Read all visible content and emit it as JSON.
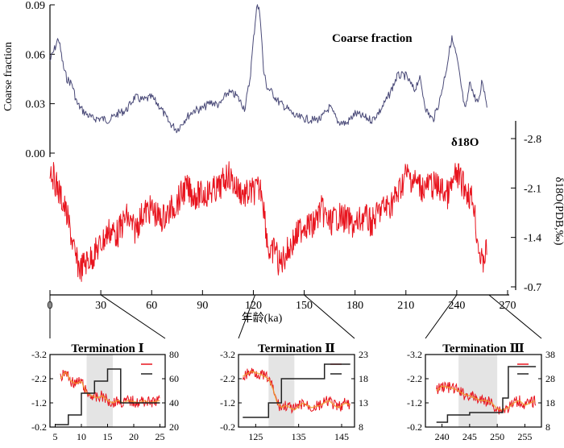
{
  "chart_data": [
    {
      "type": "line",
      "title": "",
      "xlabel": "年龄(ka)",
      "xlim": [
        0,
        270
      ],
      "x_ticks": [
        0,
        30,
        60,
        90,
        120,
        150,
        180,
        210,
        240,
        270
      ],
      "ylabel_left": "Coarse fraction",
      "ylim_left": [
        0.0,
        0.09
      ],
      "y_ticks_left": [
        "0.00",
        "0.03",
        "0.06",
        "0.09"
      ],
      "ylabel_right": "δ18O(PDB,‰)",
      "ylim_right": [
        -0.4,
        -3.2
      ],
      "y_ticks_right": [
        "-2.8",
        "-2.1",
        "-1.4",
        "-0.7"
      ],
      "grid": false,
      "series": [
        {
          "name": "Coarse fraction",
          "axis": "left",
          "color": "#4a4a78",
          "x": [
            0,
            3,
            5,
            8,
            10,
            13,
            16,
            20,
            25,
            30,
            35,
            40,
            45,
            50,
            55,
            60,
            65,
            70,
            75,
            80,
            85,
            90,
            95,
            100,
            105,
            110,
            115,
            118,
            120,
            122,
            124,
            126,
            128,
            130,
            135,
            140,
            145,
            150,
            155,
            160,
            165,
            170,
            175,
            180,
            185,
            190,
            195,
            200,
            205,
            210,
            215,
            218,
            222,
            226,
            230,
            234,
            237,
            240,
            243,
            245,
            248,
            250,
            253,
            255,
            258
          ],
          "values": [
            0.056,
            0.064,
            0.07,
            0.052,
            0.045,
            0.042,
            0.03,
            0.025,
            0.021,
            0.021,
            0.02,
            0.024,
            0.026,
            0.034,
            0.032,
            0.034,
            0.028,
            0.019,
            0.014,
            0.021,
            0.026,
            0.027,
            0.031,
            0.029,
            0.037,
            0.035,
            0.027,
            0.045,
            0.068,
            0.09,
            0.085,
            0.05,
            0.04,
            0.038,
            0.031,
            0.027,
            0.022,
            0.021,
            0.02,
            0.021,
            0.028,
            0.019,
            0.018,
            0.024,
            0.022,
            0.02,
            0.026,
            0.035,
            0.047,
            0.047,
            0.038,
            0.046,
            0.026,
            0.02,
            0.032,
            0.052,
            0.07,
            0.058,
            0.038,
            0.025,
            0.044,
            0.035,
            0.03,
            0.045,
            0.028
          ]
        },
        {
          "name": "δ18O",
          "axis": "right",
          "color": "#e8141e",
          "x": [
            0,
            3,
            6,
            9,
            12,
            15,
            18,
            21,
            24,
            27,
            30,
            35,
            40,
            45,
            50,
            55,
            60,
            65,
            70,
            75,
            80,
            85,
            90,
            95,
            100,
            105,
            110,
            115,
            120,
            125,
            128,
            130,
            133,
            135,
            140,
            145,
            150,
            155,
            160,
            165,
            170,
            175,
            180,
            185,
            190,
            195,
            200,
            205,
            210,
            215,
            220,
            225,
            230,
            235,
            240,
            245,
            250,
            252,
            255,
            258
          ],
          "values": [
            -2.4,
            -2.2,
            -2.0,
            -1.8,
            -1.5,
            -1.1,
            -0.95,
            -1.05,
            -1.1,
            -1.2,
            -1.3,
            -1.5,
            -1.45,
            -1.7,
            -1.5,
            -1.75,
            -1.8,
            -1.65,
            -1.75,
            -1.9,
            -2.1,
            -2.0,
            -2.0,
            -2.05,
            -2.1,
            -2.3,
            -2.1,
            -2.0,
            -2.05,
            -2.1,
            -1.4,
            -1.1,
            -1.3,
            -1.0,
            -1.2,
            -1.4,
            -1.6,
            -1.55,
            -1.8,
            -1.6,
            -1.7,
            -1.65,
            -1.55,
            -1.7,
            -1.6,
            -1.8,
            -1.85,
            -2.0,
            -2.3,
            -2.2,
            -2.1,
            -2.15,
            -2.1,
            -2.0,
            -2.3,
            -2.1,
            -1.9,
            -1.4,
            -1.0,
            -1.3
          ]
        }
      ],
      "annotations": [
        "Coarse fraction",
        "δ18O"
      ]
    },
    {
      "type": "line",
      "title": "Termination Ⅰ",
      "xlim": [
        4,
        26
      ],
      "x_ticks": [
        "5",
        "10",
        "15",
        "20",
        "25"
      ],
      "ylim_left": [
        -3.2,
        -0.2
      ],
      "y_ticks_left": [
        "-3.2",
        "-2.2",
        "-1.2",
        "-0.2"
      ],
      "ylim_right": [
        20,
        80
      ],
      "y_ticks_right": [
        "80",
        "60",
        "40",
        "20"
      ],
      "shaded_interval": [
        11,
        16
      ],
      "series": [
        {
          "axis": "left",
          "color": "#e8141e",
          "x": [
            6,
            7,
            8,
            9,
            10,
            11,
            12,
            13,
            14,
            15,
            16,
            17,
            18,
            19,
            20,
            21,
            22,
            23,
            24,
            25
          ],
          "values": [
            -2.2,
            -2.5,
            -2.1,
            -2.0,
            -2.1,
            -1.6,
            -1.5,
            -1.4,
            -1.5,
            -1.3,
            -1.2,
            -1.3,
            -1.2,
            -1.3,
            -1.25,
            -1.2,
            -1.3,
            -1.2,
            -1.25,
            -1.3
          ]
        },
        {
          "axis": "right",
          "color": "#222222",
          "x": [
            5,
            7.5,
            7.5,
            10,
            10,
            12.5,
            12.5,
            15,
            15,
            17.5,
            17.5,
            25
          ],
          "values": [
            22,
            22,
            30,
            30,
            48,
            48,
            58,
            58,
            68,
            68,
            40,
            40
          ]
        }
      ]
    },
    {
      "type": "line",
      "title": "Termination Ⅱ",
      "xlim": [
        121,
        148
      ],
      "x_ticks": [
        "125",
        "135",
        "145"
      ],
      "ylim_left": [
        -3.2,
        -0.2
      ],
      "y_ticks_left": [
        "-3.2",
        "-2.2",
        "-1.2",
        "-0.2"
      ],
      "ylim_right": [
        8,
        23
      ],
      "y_ticks_right": [
        "23",
        "18",
        "13",
        "8"
      ],
      "shaded_interval": [
        128,
        134
      ],
      "series": [
        {
          "axis": "left",
          "color": "#e8141e",
          "x": [
            122,
            124,
            126,
            128,
            129,
            130,
            131,
            132,
            134,
            136,
            138,
            140,
            142,
            144,
            146,
            147
          ],
          "values": [
            -2.3,
            -2.5,
            -2.4,
            -2.2,
            -1.8,
            -1.2,
            -1.0,
            -1.1,
            -0.9,
            -1.2,
            -1.0,
            -1.1,
            -1.3,
            -1.0,
            -1.2,
            -1.1
          ]
        },
        {
          "axis": "right",
          "color": "#222222",
          "x": [
            122,
            128,
            128,
            131,
            131,
            136,
            136,
            141,
            141,
            147
          ],
          "values": [
            10,
            10,
            13,
            13,
            18,
            18,
            18,
            18,
            21,
            21
          ]
        }
      ]
    },
    {
      "type": "line",
      "title": "Termination Ⅲ",
      "xlim": [
        237,
        258
      ],
      "x_ticks": [
        "240",
        "245",
        "250",
        "255"
      ],
      "ylim_left": [
        -3.2,
        -0.2
      ],
      "y_ticks_left": [
        "-3.2",
        "-2.2",
        "-1.2",
        "-0.2"
      ],
      "ylim_right": [
        8,
        38
      ],
      "y_ticks_right": [
        "38",
        "28",
        "18",
        "8"
      ],
      "shaded_interval": [
        243,
        250
      ],
      "series": [
        {
          "axis": "left",
          "color": "#e8141e",
          "x": [
            239,
            240,
            241,
            242,
            243,
            244,
            245,
            246,
            247,
            248,
            249,
            250,
            251,
            252,
            253,
            254,
            255,
            256,
            257
          ],
          "values": [
            -1.7,
            -1.9,
            -1.85,
            -1.8,
            -1.7,
            -1.55,
            -1.5,
            -1.4,
            -1.3,
            -1.3,
            -1.2,
            -0.95,
            -0.9,
            -1.0,
            -1.2,
            -1.3,
            -1.1,
            -1.2,
            -1.3
          ]
        },
        {
          "axis": "right",
          "color": "#222222",
          "x": [
            239,
            241,
            241,
            245,
            245,
            251,
            251,
            252,
            252,
            257
          ],
          "values": [
            10,
            10,
            13,
            13,
            14,
            14,
            20,
            20,
            33,
            33
          ]
        }
      ]
    }
  ]
}
